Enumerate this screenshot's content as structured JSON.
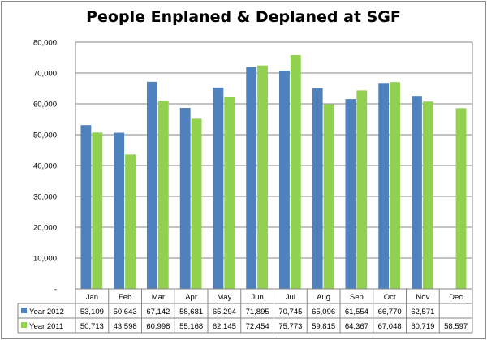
{
  "chart_data": {
    "type": "bar",
    "title": "People Enplaned & Deplaned at SGF",
    "categories": [
      "Jan",
      "Feb",
      "Mar",
      "Apr",
      "May",
      "Jun",
      "Jul",
      "Aug",
      "Sep",
      "Oct",
      "Nov",
      "Dec"
    ],
    "ylim": [
      0,
      80000
    ],
    "yticks": [
      0,
      10000,
      20000,
      30000,
      40000,
      50000,
      60000,
      70000,
      80000
    ],
    "ytick_labels": [
      "-",
      "10,000",
      "20,000",
      "30,000",
      "40,000",
      "50,000",
      "60,000",
      "70,000",
      "80,000"
    ],
    "grid": true,
    "legend": "in data table",
    "series": [
      {
        "name": "Year 2012",
        "color": "#4f81bd",
        "values": [
          53109,
          50643,
          67142,
          58681,
          65294,
          71895,
          70745,
          65096,
          61554,
          66770,
          62571,
          null
        ],
        "labels": [
          "53,109",
          "50,643",
          "67,142",
          "58,681",
          "65,294",
          "71,895",
          "70,745",
          "65,096",
          "61,554",
          "66,770",
          "62,571",
          ""
        ]
      },
      {
        "name": "Year 2011",
        "color": "#92d050",
        "values": [
          50713,
          43598,
          60998,
          55168,
          62145,
          72454,
          75773,
          59815,
          64367,
          67048,
          60719,
          58597
        ],
        "labels": [
          "50,713",
          "43,598",
          "60,998",
          "55,168",
          "62,145",
          "72,454",
          "75,773",
          "59,815",
          "64,367",
          "67,048",
          "60,719",
          "58,597"
        ]
      }
    ]
  }
}
